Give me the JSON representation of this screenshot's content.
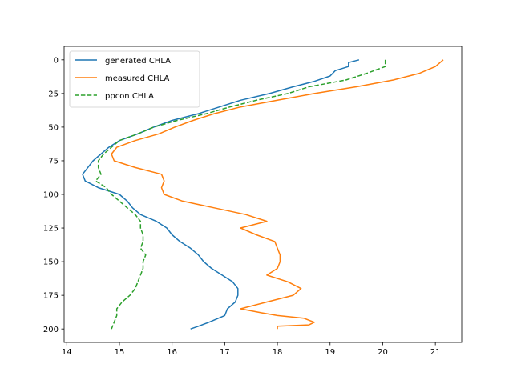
{
  "chart_data": {
    "type": "line",
    "title": "",
    "xlabel": "",
    "ylabel": "",
    "xlim": [
      13.95,
      21.5
    ],
    "ylim": [
      210,
      -10
    ],
    "y_inverted": true,
    "grid": false,
    "legend_position": "upper left",
    "x_ticks": [
      "14",
      "15",
      "16",
      "17",
      "18",
      "19",
      "20",
      "21"
    ],
    "y_ticks": [
      "0",
      "25",
      "50",
      "75",
      "100",
      "125",
      "150",
      "175",
      "200"
    ],
    "series": [
      {
        "name": "generated CHLA",
        "color": "#1f77b4",
        "style": "solid",
        "points": [
          [
            19.55,
            0
          ],
          [
            19.35,
            2
          ],
          [
            19.35,
            5
          ],
          [
            19.1,
            8
          ],
          [
            19.0,
            12
          ],
          [
            18.7,
            16
          ],
          [
            18.3,
            20
          ],
          [
            17.85,
            25
          ],
          [
            17.3,
            30
          ],
          [
            16.9,
            35
          ],
          [
            16.5,
            40
          ],
          [
            16.0,
            45
          ],
          [
            15.65,
            50
          ],
          [
            15.35,
            55
          ],
          [
            15.0,
            60
          ],
          [
            14.8,
            65
          ],
          [
            14.65,
            70
          ],
          [
            14.5,
            75
          ],
          [
            14.4,
            80
          ],
          [
            14.3,
            85
          ],
          [
            14.35,
            90
          ],
          [
            14.6,
            95
          ],
          [
            15.0,
            100
          ],
          [
            15.15,
            105
          ],
          [
            15.25,
            110
          ],
          [
            15.4,
            115
          ],
          [
            15.7,
            120
          ],
          [
            15.9,
            125
          ],
          [
            16.0,
            130
          ],
          [
            16.15,
            135
          ],
          [
            16.35,
            140
          ],
          [
            16.5,
            145
          ],
          [
            16.6,
            150
          ],
          [
            16.75,
            155
          ],
          [
            16.95,
            160
          ],
          [
            17.15,
            165
          ],
          [
            17.25,
            170
          ],
          [
            17.25,
            175
          ],
          [
            17.2,
            180
          ],
          [
            17.05,
            185
          ],
          [
            17.0,
            190
          ],
          [
            16.7,
            195
          ],
          [
            16.5,
            198
          ],
          [
            16.35,
            200
          ]
        ]
      },
      {
        "name": "measured CHLA",
        "color": "#ff7f0e",
        "style": "solid",
        "points": [
          [
            21.15,
            0
          ],
          [
            21.0,
            5
          ],
          [
            20.7,
            10
          ],
          [
            20.2,
            15
          ],
          [
            19.5,
            20
          ],
          [
            18.7,
            25
          ],
          [
            18.0,
            30
          ],
          [
            17.3,
            35
          ],
          [
            16.8,
            40
          ],
          [
            16.4,
            45
          ],
          [
            16.05,
            50
          ],
          [
            15.75,
            55
          ],
          [
            15.3,
            60
          ],
          [
            14.95,
            65
          ],
          [
            14.85,
            70
          ],
          [
            14.9,
            75
          ],
          [
            15.3,
            80
          ],
          [
            15.8,
            85
          ],
          [
            15.85,
            90
          ],
          [
            15.8,
            95
          ],
          [
            15.85,
            100
          ],
          [
            16.2,
            105
          ],
          [
            16.8,
            110
          ],
          [
            17.4,
            115
          ],
          [
            17.8,
            120
          ],
          [
            17.3,
            125
          ],
          [
            17.6,
            130
          ],
          [
            17.95,
            135
          ],
          [
            18.0,
            140
          ],
          [
            18.05,
            145
          ],
          [
            18.05,
            150
          ],
          [
            18.0,
            155
          ],
          [
            17.8,
            160
          ],
          [
            18.2,
            165
          ],
          [
            18.45,
            170
          ],
          [
            18.3,
            175
          ],
          [
            17.8,
            180
          ],
          [
            17.3,
            185
          ],
          [
            17.7,
            188
          ],
          [
            18.0,
            190
          ],
          [
            18.5,
            192
          ],
          [
            18.7,
            195
          ],
          [
            18.6,
            197
          ],
          [
            18.0,
            198
          ],
          [
            18.0,
            200
          ]
        ]
      },
      {
        "name": "ppcon CHLA",
        "color": "#2ca02c",
        "style": "dashed",
        "points": [
          [
            20.05,
            0
          ],
          [
            20.05,
            5
          ],
          [
            19.7,
            10
          ],
          [
            19.3,
            15
          ],
          [
            18.6,
            20
          ],
          [
            18.2,
            25
          ],
          [
            17.6,
            30
          ],
          [
            17.1,
            35
          ],
          [
            16.65,
            40
          ],
          [
            16.1,
            45
          ],
          [
            15.65,
            50
          ],
          [
            15.35,
            55
          ],
          [
            15.0,
            60
          ],
          [
            14.85,
            65
          ],
          [
            14.7,
            70
          ],
          [
            14.6,
            75
          ],
          [
            14.6,
            80
          ],
          [
            14.65,
            85
          ],
          [
            14.55,
            90
          ],
          [
            14.75,
            95
          ],
          [
            14.85,
            100
          ],
          [
            15.0,
            105
          ],
          [
            15.15,
            110
          ],
          [
            15.3,
            115
          ],
          [
            15.4,
            120
          ],
          [
            15.4,
            125
          ],
          [
            15.45,
            130
          ],
          [
            15.45,
            135
          ],
          [
            15.4,
            140
          ],
          [
            15.5,
            145
          ],
          [
            15.45,
            150
          ],
          [
            15.45,
            155
          ],
          [
            15.4,
            160
          ],
          [
            15.35,
            165
          ],
          [
            15.3,
            170
          ],
          [
            15.2,
            175
          ],
          [
            15.05,
            180
          ],
          [
            14.95,
            185
          ],
          [
            14.95,
            190
          ],
          [
            14.9,
            195
          ],
          [
            14.85,
            200
          ]
        ]
      }
    ]
  }
}
